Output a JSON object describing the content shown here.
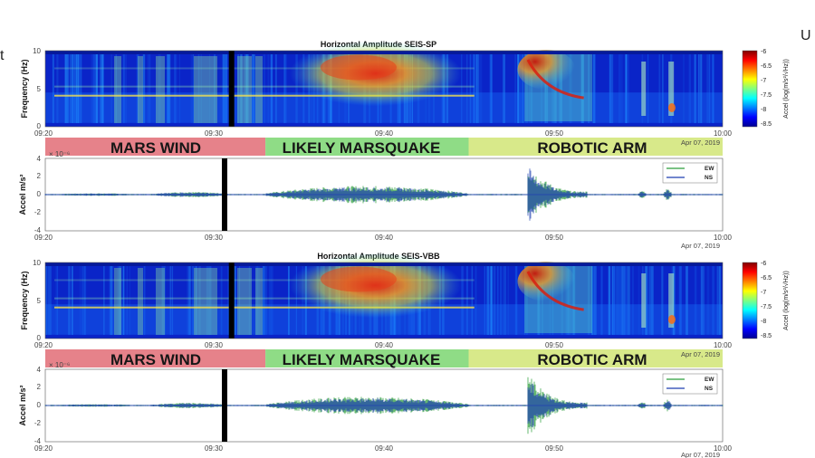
{
  "page": {
    "left_fragment": "t",
    "right_fragment": "U"
  },
  "chart_data": [
    {
      "type": "heatmap",
      "title": "Horizontal Amplitude SEIS-SP",
      "ylabel": "Frequency (Hz)",
      "xlim": [
        "09:20",
        "10:00"
      ],
      "ylim": [
        0,
        10
      ],
      "x_ticks": [
        "09:20",
        "09:30",
        "09:40",
        "09:50",
        "10:00"
      ],
      "y_ticks": [
        "0",
        "5",
        "10"
      ],
      "colorbar": {
        "label": "Accel (log(m/s²/√Hz))",
        "range": [
          -8.5,
          -6
        ],
        "ticks": [
          "-6",
          "-6.5",
          "-7",
          "-7.5",
          "-8",
          "-8.5"
        ]
      },
      "data_gap_at": "09:31",
      "events": [
        {
          "start": "09:26",
          "end": "09:31",
          "level": 0.25
        },
        {
          "start": "09:33",
          "end": "09:45",
          "level": 0.9
        },
        {
          "start": "09:48",
          "end": "09:52",
          "level": 1.0
        },
        {
          "start": "09:55",
          "end": "09:55.5",
          "level": 0.5
        },
        {
          "start": "09:56.5",
          "end": "09:57",
          "level": 0.6
        }
      ]
    },
    {
      "type": "line",
      "ylabel": "Accel m/s²",
      "y_exponent": "× 10⁻⁶",
      "xlim": [
        "09:20",
        "10:00"
      ],
      "ylim": [
        -4,
        4
      ],
      "x_ticks": [
        "09:20",
        "09:30",
        "09:40",
        "09:50",
        "10:00"
      ],
      "y_ticks": [
        "4",
        "2",
        "0",
        "-2",
        "-4"
      ],
      "date": "Apr 07, 2019",
      "series": [
        {
          "name": "EW",
          "color": "#2a9d3a"
        },
        {
          "name": "NS",
          "color": "#1f3fb0"
        }
      ],
      "envelope": [
        {
          "start": "09:20",
          "end": "09:26",
          "amp": 0.15
        },
        {
          "start": "09:26",
          "end": "09:31",
          "amp": 0.3
        },
        {
          "start": "09:33",
          "end": "09:45",
          "amp": 1.0
        },
        {
          "start": "09:48.5",
          "end": "09:52",
          "amp": 3.8
        },
        {
          "start": "09:55",
          "end": "09:55.5",
          "amp": 0.4
        },
        {
          "start": "09:56.5",
          "end": "09:57",
          "amp": 0.7
        }
      ]
    },
    {
      "type": "heatmap",
      "title": "Horizontal Amplitude SEIS-VBB",
      "ylabel": "Frequency (Hz)",
      "xlim": [
        "09:20",
        "10:00"
      ],
      "ylim": [
        0,
        10
      ],
      "x_ticks": [
        "09:20",
        "09:30",
        "09:40",
        "09:50",
        "10:00"
      ],
      "y_ticks": [
        "0",
        "5",
        "10"
      ],
      "colorbar": {
        "label": "Accel (log(m/s²/√Hz))",
        "range": [
          -8.5,
          -6
        ],
        "ticks": [
          "-6",
          "-6.5",
          "-7",
          "-7.5",
          "-8",
          "-8.5"
        ]
      },
      "data_gap_at": "09:31"
    },
    {
      "type": "line",
      "ylabel": "Accel m/s²",
      "y_exponent": "× 10⁻⁶",
      "xlim": [
        "09:20",
        "10:00"
      ],
      "ylim": [
        -4,
        4
      ],
      "x_ticks": [
        "09:20",
        "09:30",
        "09:40",
        "09:50",
        "10:00"
      ],
      "y_ticks": [
        "4",
        "2",
        "0",
        "-2",
        "-4"
      ],
      "date": "Apr 07, 2019",
      "series": [
        {
          "name": "EW",
          "color": "#2a9d3a"
        },
        {
          "name": "NS",
          "color": "#1f3fb0"
        }
      ]
    }
  ],
  "annotations": [
    {
      "bands": [
        {
          "label": "MARS WIND",
          "start": "09:20",
          "end": "09:33",
          "color": "#e6828a"
        },
        {
          "label": "LIKELY MARSQUAKE",
          "start": "09:33",
          "end": "09:45",
          "color": "#8fdc86"
        },
        {
          "label": "ROBOTIC ARM",
          "start": "09:45",
          "end": "10:00",
          "color": "#d8e98a"
        }
      ],
      "date": "Apr 07, 2019"
    },
    {
      "bands": [
        {
          "label": "MARS WIND",
          "start": "09:20",
          "end": "09:33",
          "color": "#e6828a"
        },
        {
          "label": "LIKELY MARSQUAKE",
          "start": "09:33",
          "end": "09:45",
          "color": "#8fdc86"
        },
        {
          "label": "ROBOTIC ARM",
          "start": "09:45",
          "end": "10:00",
          "color": "#d8e98a"
        }
      ],
      "date": "Apr 07, 2019"
    }
  ]
}
